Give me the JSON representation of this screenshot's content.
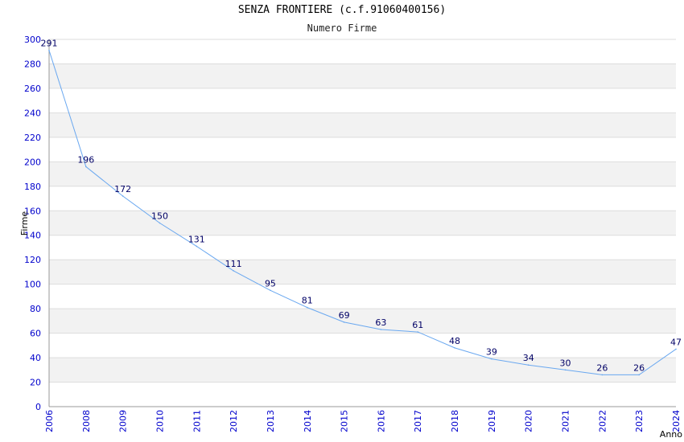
{
  "chart_data": {
    "type": "line",
    "title": "SENZA FRONTIERE (c.f.91060400156)",
    "subtitle": "Numero Firme",
    "xlabel": "Anno",
    "ylabel": "Firme",
    "ylim": [
      0,
      300
    ],
    "y_ticks": [
      0,
      20,
      40,
      60,
      80,
      100,
      120,
      140,
      160,
      180,
      200,
      220,
      240,
      260,
      280,
      300
    ],
    "x": [
      "2006",
      "2008",
      "2009",
      "2010",
      "2011",
      "2012",
      "2013",
      "2014",
      "2015",
      "2016",
      "2017",
      "2018",
      "2019",
      "2020",
      "2021",
      "2022",
      "2023",
      "2024"
    ],
    "series": [
      {
        "values": [
          291,
          196,
          172,
          150,
          131,
          111,
          95,
          81,
          69,
          63,
          61,
          48,
          39,
          34,
          30,
          26,
          26,
          47
        ]
      }
    ],
    "grid": true,
    "colors": {
      "line": "#6aa8f0",
      "tick_label": "#0000cc",
      "data_label": "#000066",
      "band": "#f2f2f2",
      "gridline": "#dddddd"
    }
  }
}
